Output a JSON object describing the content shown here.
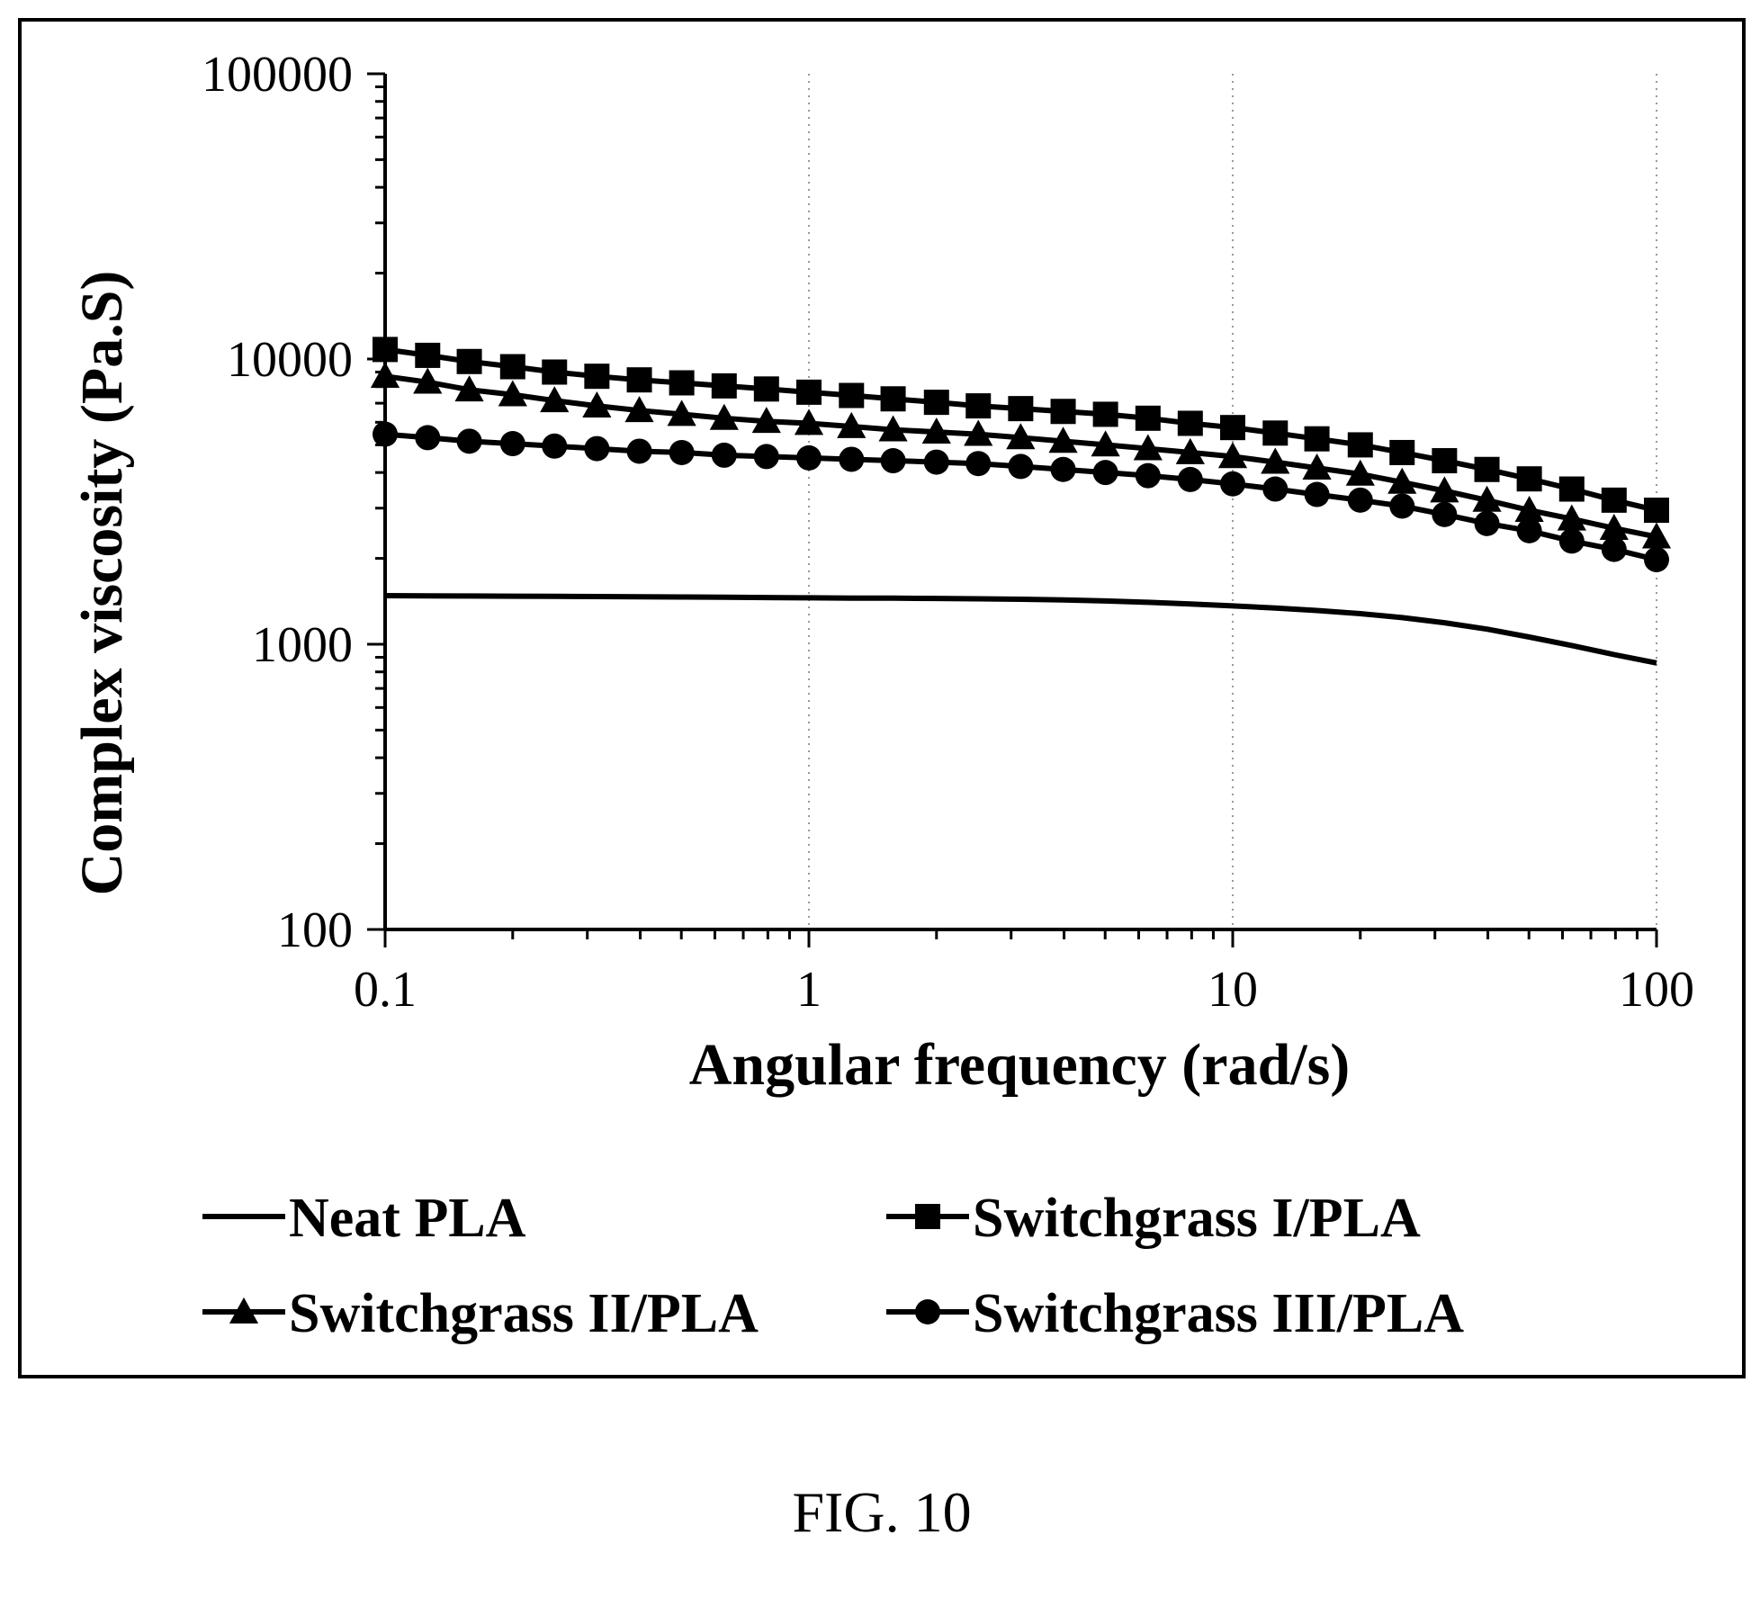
{
  "chart_data": {
    "type": "line",
    "title": "",
    "xlabel": "Angular frequency (rad/s)",
    "ylabel": "Complex viscosity (Pa.S)",
    "x_scale": "log",
    "y_scale": "log",
    "xlim": [
      0.1,
      100
    ],
    "ylim": [
      100,
      100000
    ],
    "x_ticks": [
      "0.1",
      "1",
      "10",
      "100"
    ],
    "y_ticks": [
      "100",
      "1000",
      "10000",
      "100000"
    ],
    "grid": "dotted vertical lines at decades",
    "legend_position": "bottom",
    "series": [
      {
        "name": "Neat PLA",
        "marker": "none",
        "x": [
          0.1,
          0.126,
          0.158,
          0.2,
          0.251,
          0.316,
          0.398,
          0.501,
          0.631,
          0.794,
          1,
          1.26,
          1.58,
          2,
          2.51,
          3.16,
          3.98,
          5.01,
          6.31,
          7.94,
          10,
          12.6,
          15.8,
          20,
          25.1,
          31.6,
          39.8,
          50.1,
          63.1,
          79.4,
          100
        ],
        "values": [
          1480,
          1478,
          1476,
          1474,
          1472,
          1470,
          1467,
          1464,
          1461,
          1458,
          1455,
          1452,
          1450,
          1447,
          1443,
          1438,
          1430,
          1418,
          1403,
          1385,
          1363,
          1340,
          1313,
          1280,
          1240,
          1190,
          1130,
          1060,
          990,
          920,
          860
        ]
      },
      {
        "name": "Switchgrass I/PLA",
        "marker": "square",
        "x": [
          0.1,
          0.126,
          0.158,
          0.2,
          0.251,
          0.316,
          0.398,
          0.501,
          0.631,
          0.794,
          1,
          1.26,
          1.58,
          2,
          2.51,
          3.16,
          3.98,
          5.01,
          6.31,
          7.94,
          10,
          12.6,
          15.8,
          20,
          25.1,
          31.6,
          39.8,
          50.1,
          63.1,
          79.4,
          100
        ],
        "values": [
          10800,
          10300,
          9800,
          9400,
          9000,
          8700,
          8450,
          8250,
          8050,
          7850,
          7650,
          7450,
          7250,
          7050,
          6850,
          6700,
          6550,
          6400,
          6200,
          5950,
          5750,
          5500,
          5250,
          5000,
          4700,
          4400,
          4100,
          3800,
          3500,
          3200,
          2950
        ]
      },
      {
        "name": "Switchgrass II/PLA",
        "marker": "triangle",
        "x": [
          0.1,
          0.126,
          0.158,
          0.2,
          0.251,
          0.316,
          0.398,
          0.501,
          0.631,
          0.794,
          1,
          1.26,
          1.58,
          2,
          2.51,
          3.16,
          3.98,
          5.01,
          6.31,
          7.94,
          10,
          12.6,
          15.8,
          20,
          25.1,
          31.6,
          39.8,
          50.1,
          63.1,
          79.4,
          100
        ],
        "values": [
          8700,
          8300,
          7800,
          7500,
          7150,
          6850,
          6600,
          6400,
          6200,
          6050,
          5950,
          5800,
          5650,
          5550,
          5450,
          5300,
          5150,
          5000,
          4850,
          4700,
          4550,
          4350,
          4150,
          3950,
          3700,
          3450,
          3200,
          2950,
          2750,
          2550,
          2380
        ]
      },
      {
        "name": "Switchgrass III/PLA",
        "marker": "circle",
        "x": [
          0.1,
          0.126,
          0.158,
          0.2,
          0.251,
          0.316,
          0.398,
          0.501,
          0.631,
          0.794,
          1,
          1.26,
          1.58,
          2,
          2.51,
          3.16,
          3.98,
          5.01,
          6.31,
          7.94,
          10,
          12.6,
          15.8,
          20,
          25.1,
          31.6,
          39.8,
          50.1,
          63.1,
          79.4,
          100
        ],
        "values": [
          5450,
          5300,
          5150,
          5050,
          4950,
          4850,
          4750,
          4700,
          4600,
          4550,
          4500,
          4450,
          4400,
          4350,
          4300,
          4200,
          4100,
          4000,
          3900,
          3780,
          3650,
          3500,
          3350,
          3200,
          3050,
          2850,
          2650,
          2500,
          2300,
          2150,
          1980
        ]
      }
    ]
  },
  "caption": "FIG. 10"
}
